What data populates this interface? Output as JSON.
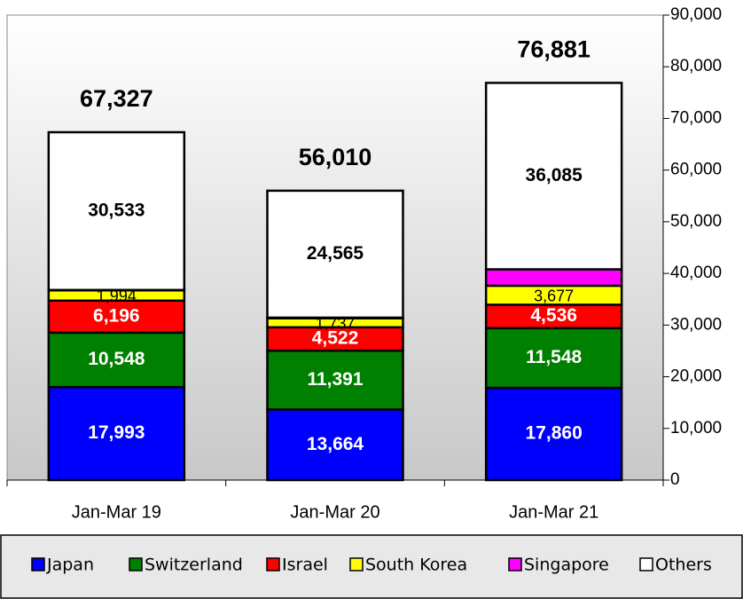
{
  "chart_data": {
    "type": "stacked_bar",
    "categories": [
      "Jan-Mar 19",
      "Jan-Mar 20",
      "Jan-Mar 21"
    ],
    "series": [
      {
        "name": "Japan",
        "color": "#0000ff",
        "values": [
          17993,
          13664,
          17860
        ],
        "value_labels": [
          "17,993",
          "13,664",
          "17,860"
        ]
      },
      {
        "name": "Switzerland",
        "color": "#008000",
        "values": [
          10548,
          11391,
          11548
        ],
        "value_labels": [
          "10,548",
          "11,391",
          "11,548"
        ]
      },
      {
        "name": "Israel",
        "color": "#ff0000",
        "values": [
          6196,
          4522,
          4536
        ],
        "value_labels": [
          "6,196",
          "4,522",
          "4,536"
        ]
      },
      {
        "name": "South Korea",
        "color": "#ffff00",
        "values": [
          1994,
          1737,
          3677
        ],
        "value_labels": [
          "1,994",
          "1,737",
          "3,677"
        ]
      },
      {
        "name": "Singapore",
        "color": "#ff00ff",
        "values": [
          63,
          131,
          3175
        ]
      },
      {
        "name": "Others",
        "color": "#ffffff",
        "values": [
          30533,
          24565,
          36085
        ],
        "value_labels": [
          "30,533",
          "24,565",
          "36,085"
        ]
      }
    ],
    "totals": [
      67327,
      56010,
      76881
    ],
    "totals_labels": [
      "67,327",
      "56,010",
      "76,881"
    ],
    "ylim": [
      0,
      90000
    ],
    "yticks": [
      0,
      {
        "value": 10000,
        "label": "10,000"
      },
      {
        "value": 20000,
        "label": "20,000"
      },
      {
        "value": 30000,
        "label": "30,000"
      },
      {
        "value": 40000,
        "label": "40,000"
      },
      {
        "value": 50000,
        "label": "50,000"
      },
      {
        "value": 60000,
        "label": "60,000"
      },
      {
        "value": 70000,
        "label": "70,000"
      },
      {
        "value": 80000,
        "label": "80,000"
      },
      {
        "value": 90000,
        "label": "90,000"
      }
    ],
    "legend": "bottom"
  }
}
